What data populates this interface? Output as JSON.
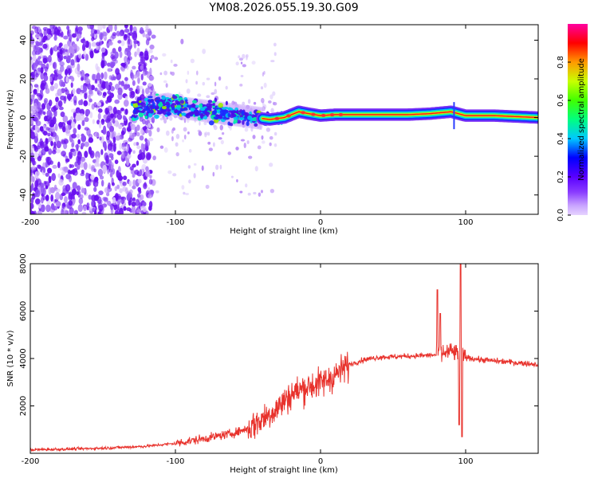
{
  "title": "YM08.2026.055.19.30.G09",
  "chart_data": [
    {
      "type": "heatmap",
      "xlabel": "Height of straight line (km)",
      "ylabel": "Frequency (Hz)",
      "xlim": [
        -200,
        150
      ],
      "ylim": [
        -50,
        48
      ],
      "xticks": [
        -200,
        -100,
        0,
        100
      ],
      "yticks": [
        -40,
        -20,
        0,
        20,
        40
      ],
      "ridge": [
        {
          "x": -125,
          "y": 5
        },
        {
          "x": -115,
          "y": 6
        },
        {
          "x": -105,
          "y": 7
        },
        {
          "x": -95,
          "y": 5
        },
        {
          "x": -85,
          "y": 4
        },
        {
          "x": -75,
          "y": 3
        },
        {
          "x": -65,
          "y": 2
        },
        {
          "x": -55,
          "y": 1
        },
        {
          "x": -45,
          "y": 0
        },
        {
          "x": -35,
          "y": -1
        },
        {
          "x": -25,
          "y": 0
        },
        {
          "x": -15,
          "y": 3
        },
        {
          "x": -8,
          "y": 2
        },
        {
          "x": 0,
          "y": 1
        },
        {
          "x": 10,
          "y": 1.5
        },
        {
          "x": 30,
          "y": 1.5
        },
        {
          "x": 60,
          "y": 1.5
        },
        {
          "x": 75,
          "y": 2
        },
        {
          "x": 90,
          "y": 3
        },
        {
          "x": 100,
          "y": 1
        },
        {
          "x": 120,
          "y": 1
        },
        {
          "x": 150,
          "y": 0
        }
      ],
      "colorbar": {
        "label": "Normalized spectral amplitude",
        "ticks": [
          "0.0",
          "0.2",
          "0.4",
          "0.6",
          "0.8"
        ],
        "range": [
          0,
          1
        ]
      }
    },
    {
      "type": "line",
      "xlabel": "Height of straight line (km)",
      "ylabel": "SNR (10 * v/v)",
      "xlim": [
        -200,
        150
      ],
      "ylim": [
        0,
        8000
      ],
      "xticks": [
        -200,
        -100,
        0,
        100
      ],
      "yticks": [
        2000,
        4000,
        6000,
        8000
      ],
      "series": [
        {
          "name": "SNR",
          "color": "#e8322c",
          "points": [
            {
              "x": -200,
              "y": 150
            },
            {
              "x": -180,
              "y": 170
            },
            {
              "x": -160,
              "y": 200
            },
            {
              "x": -140,
              "y": 240
            },
            {
              "x": -120,
              "y": 300
            },
            {
              "x": -100,
              "y": 420
            },
            {
              "x": -80,
              "y": 620
            },
            {
              "x": -60,
              "y": 850
            },
            {
              "x": -50,
              "y": 1050
            },
            {
              "x": -40,
              "y": 1450
            },
            {
              "x": -30,
              "y": 1900
            },
            {
              "x": -20,
              "y": 2500
            },
            {
              "x": -10,
              "y": 2800
            },
            {
              "x": 0,
              "y": 2950
            },
            {
              "x": 10,
              "y": 3300
            },
            {
              "x": 20,
              "y": 3750
            },
            {
              "x": 30,
              "y": 3950
            },
            {
              "x": 40,
              "y": 4050
            },
            {
              "x": 60,
              "y": 4100
            },
            {
              "x": 80,
              "y": 4150
            },
            {
              "x": 90,
              "y": 4300
            },
            {
              "x": 100,
              "y": 4050
            },
            {
              "x": 110,
              "y": 3950
            },
            {
              "x": 130,
              "y": 3850
            },
            {
              "x": 150,
              "y": 3750
            }
          ],
          "peaks": [
            {
              "x": 80.5,
              "y": 6900
            },
            {
              "x": 82.5,
              "y": 5900
            },
            {
              "x": 96.5,
              "y": 8000
            },
            {
              "x": 97.5,
              "y": 700
            },
            {
              "x": 95.5,
              "y": 1200
            }
          ]
        }
      ]
    }
  ]
}
